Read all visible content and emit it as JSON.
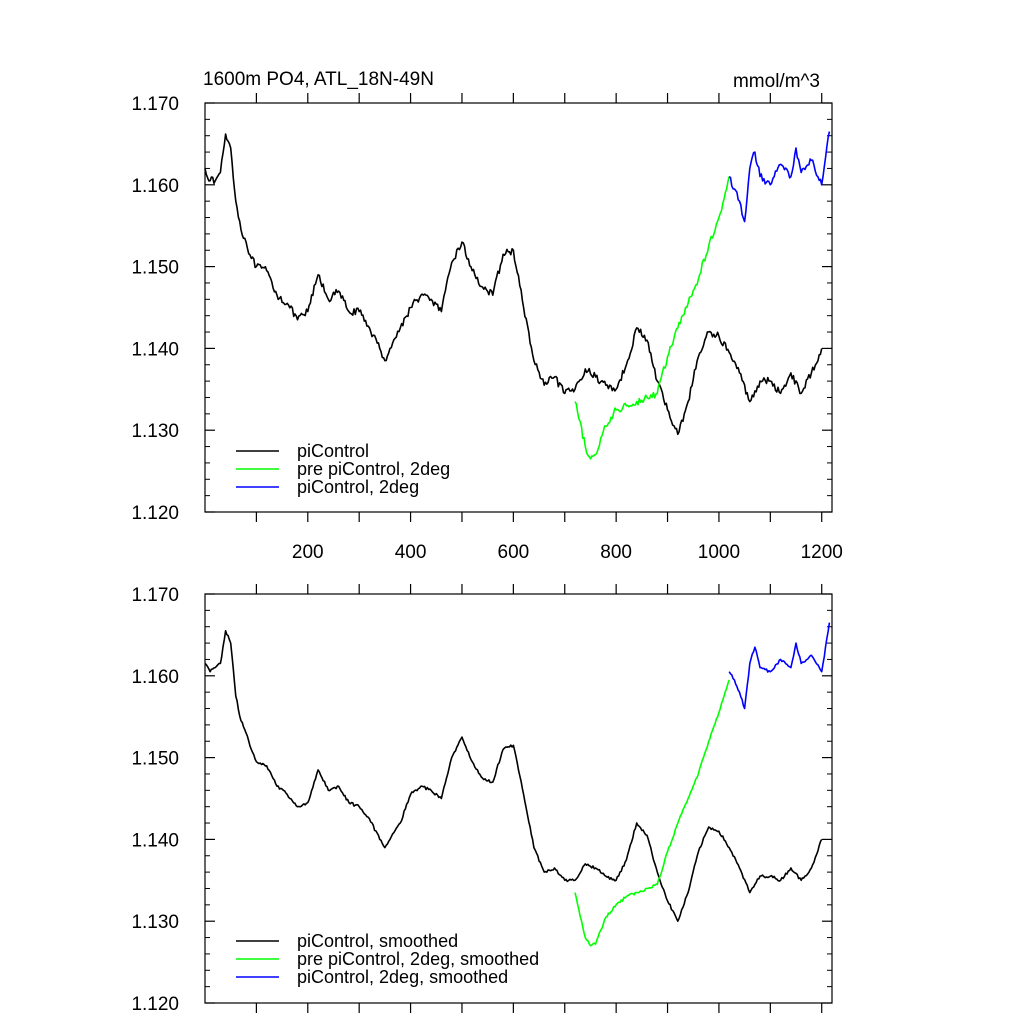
{
  "chart_data": [
    {
      "type": "line",
      "title": "1600m PO4, ATL_18N-49N",
      "units": "mmol/m^3",
      "xlabel": "",
      "ylabel": "",
      "xlim": [
        0,
        1220
      ],
      "ylim": [
        1.12,
        1.17
      ],
      "xticks": [
        200,
        400,
        600,
        800,
        1000,
        1200
      ],
      "xtick_labels": [
        "200",
        "400",
        "600",
        "800",
        "1000",
        "1200"
      ],
      "yticks": [
        1.12,
        1.13,
        1.14,
        1.15,
        1.16,
        1.17
      ],
      "ytick_labels": [
        "1.120",
        "1.130",
        "1.140",
        "1.150",
        "1.160",
        "1.170"
      ],
      "grid": false,
      "legend_position": "bottom-left",
      "series": [
        {
          "name": "piControl",
          "color": "#000000",
          "x": [
            0,
            10,
            20,
            30,
            40,
            50,
            60,
            70,
            80,
            90,
            100,
            120,
            140,
            160,
            180,
            200,
            220,
            240,
            260,
            280,
            300,
            320,
            340,
            350,
            360,
            380,
            400,
            420,
            440,
            460,
            480,
            500,
            520,
            540,
            560,
            580,
            600,
            620,
            640,
            660,
            680,
            700,
            720,
            740,
            760,
            780,
            800,
            820,
            840,
            860,
            880,
            900,
            920,
            940,
            960,
            980,
            1000,
            1020,
            1040,
            1060,
            1080,
            1100,
            1120,
            1140,
            1160,
            1180,
            1200
          ],
          "y": [
            1.162,
            1.1605,
            1.1605,
            1.1615,
            1.1662,
            1.1645,
            1.158,
            1.1545,
            1.153,
            1.151,
            1.15,
            1.1495,
            1.1465,
            1.1455,
            1.1435,
            1.1445,
            1.149,
            1.146,
            1.147,
            1.1445,
            1.1445,
            1.1425,
            1.14,
            1.1385,
            1.14,
            1.1425,
            1.145,
            1.1465,
            1.146,
            1.1445,
            1.1505,
            1.153,
            1.1495,
            1.1475,
            1.1465,
            1.1515,
            1.152,
            1.145,
            1.1385,
            1.1355,
            1.1365,
            1.1345,
            1.135,
            1.1375,
            1.1365,
            1.1355,
            1.135,
            1.138,
            1.1425,
            1.141,
            1.136,
            1.1325,
            1.1295,
            1.1335,
            1.139,
            1.142,
            1.1415,
            1.1395,
            1.137,
            1.1335,
            1.136,
            1.136,
            1.1345,
            1.137,
            1.1345,
            1.137,
            1.14
          ]
        },
        {
          "name": "pre piControl, 2deg",
          "color": "#00ff00",
          "x": [
            720,
            740,
            750,
            760,
            780,
            800,
            820,
            840,
            860,
            880,
            900,
            920,
            940,
            960,
            980,
            1000,
            1020
          ],
          "y": [
            1.1335,
            1.128,
            1.1265,
            1.127,
            1.1305,
            1.1325,
            1.133,
            1.1335,
            1.134,
            1.1345,
            1.139,
            1.1425,
            1.1455,
            1.1485,
            1.1525,
            1.156,
            1.161
          ]
        },
        {
          "name": "piControl, 2deg",
          "color": "#0000ff",
          "x": [
            1020,
            1030,
            1040,
            1050,
            1060,
            1070,
            1080,
            1100,
            1120,
            1140,
            1150,
            1160,
            1180,
            1200,
            1215
          ],
          "y": [
            1.161,
            1.1595,
            1.158,
            1.1555,
            1.162,
            1.164,
            1.161,
            1.16,
            1.1625,
            1.161,
            1.1645,
            1.1615,
            1.163,
            1.16,
            1.1665
          ]
        }
      ]
    },
    {
      "type": "line",
      "title": "",
      "xlabel": "",
      "ylabel": "",
      "xlim": [
        0,
        1220
      ],
      "ylim": [
        1.12,
        1.17
      ],
      "xticks": [
        200,
        400,
        600,
        800,
        1000,
        1200
      ],
      "yticks": [
        1.12,
        1.13,
        1.14,
        1.15,
        1.16,
        1.17
      ],
      "ytick_labels": [
        "1.120",
        "1.130",
        "1.140",
        "1.150",
        "1.160",
        "1.170"
      ],
      "grid": false,
      "legend_position": "bottom-left",
      "series": [
        {
          "name": "piControl, smoothed",
          "color": "#000000",
          "x": [
            0,
            10,
            20,
            30,
            40,
            50,
            60,
            70,
            80,
            90,
            100,
            120,
            140,
            160,
            180,
            200,
            220,
            240,
            260,
            280,
            300,
            320,
            340,
            350,
            360,
            380,
            400,
            420,
            440,
            460,
            480,
            500,
            520,
            540,
            560,
            580,
            600,
            620,
            640,
            660,
            680,
            700,
            720,
            740,
            760,
            780,
            800,
            820,
            840,
            860,
            880,
            900,
            920,
            940,
            960,
            980,
            1000,
            1020,
            1040,
            1060,
            1080,
            1100,
            1120,
            1140,
            1160,
            1180,
            1200
          ],
          "y": [
            1.1615,
            1.1605,
            1.161,
            1.1615,
            1.1655,
            1.164,
            1.1575,
            1.1545,
            1.153,
            1.151,
            1.1495,
            1.149,
            1.1465,
            1.1455,
            1.144,
            1.1445,
            1.1485,
            1.146,
            1.1465,
            1.1445,
            1.144,
            1.1425,
            1.14,
            1.139,
            1.14,
            1.142,
            1.1455,
            1.1465,
            1.146,
            1.145,
            1.15,
            1.1525,
            1.1495,
            1.1475,
            1.147,
            1.151,
            1.1515,
            1.1455,
            1.139,
            1.136,
            1.1365,
            1.135,
            1.135,
            1.137,
            1.1365,
            1.1355,
            1.135,
            1.1375,
            1.142,
            1.1405,
            1.136,
            1.1325,
            1.13,
            1.1335,
            1.1385,
            1.1415,
            1.141,
            1.139,
            1.1365,
            1.1335,
            1.1355,
            1.1355,
            1.135,
            1.1365,
            1.135,
            1.1365,
            1.14
          ]
        },
        {
          "name": "pre piControl, 2deg, smoothed",
          "color": "#00ff00",
          "x": [
            720,
            740,
            750,
            760,
            780,
            800,
            820,
            840,
            860,
            880,
            900,
            920,
            940,
            960,
            980,
            1000,
            1020
          ],
          "y": [
            1.1335,
            1.128,
            1.127,
            1.1272,
            1.1305,
            1.132,
            1.133,
            1.1335,
            1.134,
            1.1345,
            1.1385,
            1.142,
            1.145,
            1.148,
            1.152,
            1.1555,
            1.1595
          ]
        },
        {
          "name": "piControl, 2deg, smoothed",
          "color": "#0000ff",
          "x": [
            1020,
            1030,
            1040,
            1050,
            1060,
            1070,
            1080,
            1100,
            1120,
            1140,
            1150,
            1160,
            1180,
            1200,
            1215
          ],
          "y": [
            1.1605,
            1.1595,
            1.158,
            1.156,
            1.1615,
            1.1635,
            1.161,
            1.1605,
            1.162,
            1.161,
            1.164,
            1.1615,
            1.1625,
            1.1605,
            1.1665
          ]
        }
      ]
    }
  ]
}
